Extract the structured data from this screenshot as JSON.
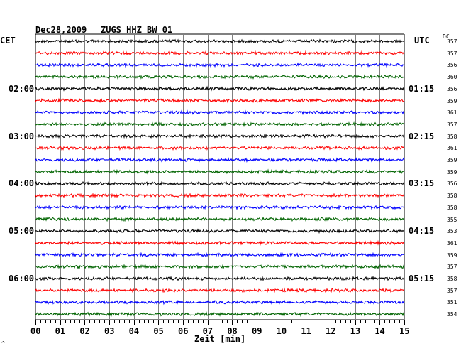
{
  "header": {
    "date": "Dec28,2009",
    "station": "ZUGS HHZ BW 01",
    "left_zone": "CET",
    "right_zone": "UTC",
    "dc_label": "DC"
  },
  "chart_data": {
    "type": "line",
    "title": "Dec28,2009   ZUGS HHZ BW 01",
    "xlabel": "Zeit [min]",
    "xlim": [
      0,
      15
    ],
    "x_ticks": [
      "00",
      "01",
      "02",
      "03",
      "04",
      "05",
      "06",
      "07",
      "08",
      "09",
      "10",
      "11",
      "12",
      "13",
      "14",
      "15"
    ],
    "trace_colors": [
      "#000000",
      "#ff0000",
      "#0000ff",
      "#006400"
    ],
    "trace_count": 24,
    "left_hour_labels": [
      {
        "row": 4,
        "text": "02:00"
      },
      {
        "row": 8,
        "text": "03:00"
      },
      {
        "row": 12,
        "text": "04:00"
      },
      {
        "row": 16,
        "text": "05:00"
      },
      {
        "row": 20,
        "text": "06:00"
      }
    ],
    "right_hour_labels": [
      {
        "row": 4,
        "text": "01:15"
      },
      {
        "row": 8,
        "text": "02:15"
      },
      {
        "row": 12,
        "text": "03:15"
      },
      {
        "row": 16,
        "text": "04:15"
      },
      {
        "row": 20,
        "text": "05:15"
      }
    ],
    "dc_values": [
      357,
      357,
      356,
      360,
      356,
      359,
      361,
      357,
      358,
      361,
      359,
      359,
      356,
      358,
      358,
      355,
      353,
      361,
      359,
      357,
      358,
      357,
      351,
      354
    ]
  }
}
